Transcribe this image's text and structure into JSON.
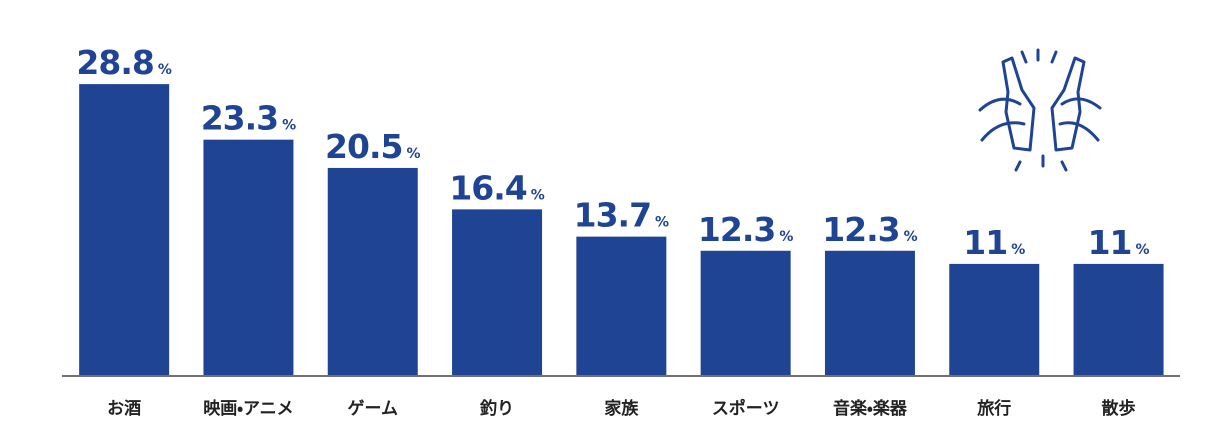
{
  "chart_data": {
    "type": "bar",
    "categories": [
      "お酒",
      "映画・アニメ",
      "ゲーム",
      "釣り",
      "家族",
      "スポーツ",
      "音楽・楽器",
      "旅行",
      "散歩"
    ],
    "values": [
      28.8,
      23.3,
      20.5,
      16.4,
      13.7,
      12.3,
      12.3,
      11,
      11
    ],
    "unit": "%",
    "color": "#1f4494"
  }
}
